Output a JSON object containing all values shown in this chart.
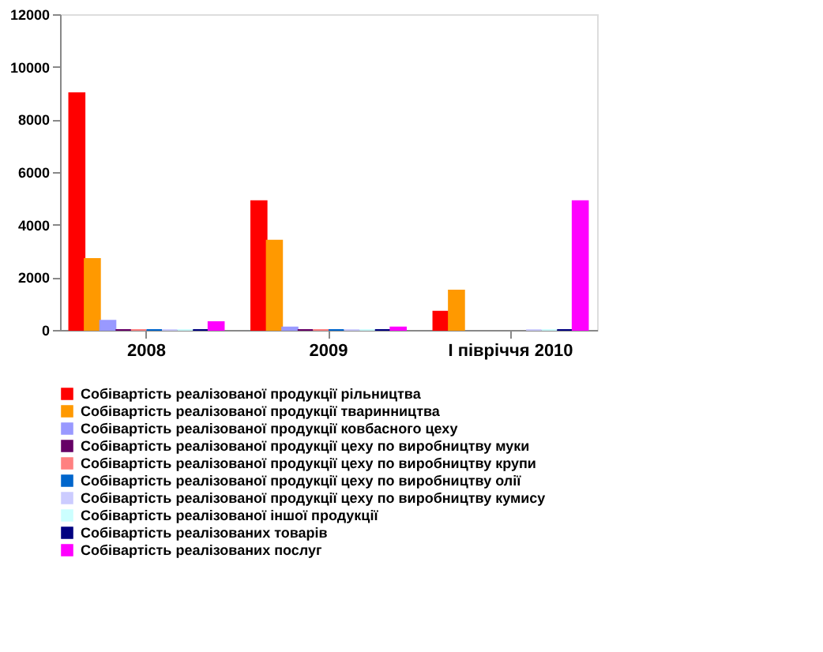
{
  "chart_data": {
    "type": "bar",
    "categories": [
      "2008",
      "2009",
      "І півріччя 2010"
    ],
    "series": [
      {
        "name": "Собівартість реалізованої продукції рільництва",
        "color": "#ff0000",
        "values": [
          9000,
          4900,
          700
        ]
      },
      {
        "name": "Собівартість реалізованої продукції тваринництва",
        "color": "#ff9900",
        "values": [
          2700,
          3400,
          1500
        ]
      },
      {
        "name": "Собівартість реалізованої продукції ковбасного цеху",
        "color": "#9999ff",
        "values": [
          350,
          100,
          null
        ]
      },
      {
        "name": "Собівартість реалізованої продукції цеху по виробництву муки",
        "color": "#660066",
        "values": [
          0,
          0,
          null
        ]
      },
      {
        "name": "Собівартість реалізованої продукції цеху по виробництву крупи",
        "color": "#ff8080",
        "values": [
          0,
          0,
          null
        ]
      },
      {
        "name": "Собівартість реалізованої продукції цеху по виробництву олії",
        "color": "#0066cc",
        "values": [
          0,
          0,
          null
        ]
      },
      {
        "name": "Собівартість реалізованої продукції цеху по виробництву кумису",
        "color": "#ccccff",
        "values": [
          0,
          0,
          0
        ]
      },
      {
        "name": "Собівартість реалізованої іншої продукції",
        "color": "#ccffff",
        "values": [
          0,
          0,
          0
        ]
      },
      {
        "name": "Собівартість реалізованих товарів",
        "color": "#000080",
        "values": [
          0,
          0,
          0
        ]
      },
      {
        "name": "Собівартість реалізованих послуг",
        "color": "#ff00ff",
        "values": [
          300,
          100,
          4900
        ]
      }
    ],
    "ylim": [
      0,
      12000
    ],
    "yticks": [
      0,
      2000,
      4000,
      6000,
      8000,
      10000,
      12000
    ],
    "grid": false,
    "legend": "bottom"
  }
}
